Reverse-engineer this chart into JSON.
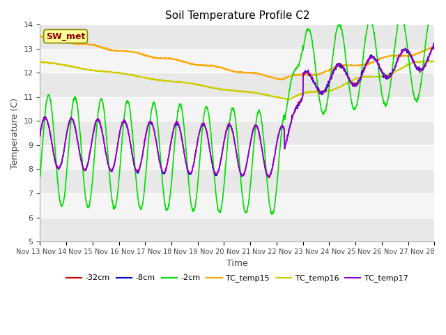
{
  "title": "Soil Temperature Profile C2",
  "xlabel": "Time",
  "ylabel": "Temperature (C)",
  "ylim": [
    5.0,
    14.0
  ],
  "yticks": [
    5.0,
    6.0,
    7.0,
    8.0,
    9.0,
    10.0,
    11.0,
    12.0,
    13.0,
    14.0
  ],
  "bg_color": "#ffffff",
  "plot_bg_color": "#ffffff",
  "band_colors": [
    "#e8e8e8",
    "#f5f5f5"
  ],
  "line_colors": {
    "TC_temp15": "#ffa500",
    "TC_temp16": "#cccc00",
    "TC_temp17": "#9900cc",
    "neg2cm": "#00dd00",
    "neg8cm": "#0000cc",
    "neg32cm": "#cc0000"
  },
  "sw_met_label": "SW_met",
  "sw_met_box_color": "#ffff99",
  "sw_met_text_color": "#880000",
  "legend_items": [
    "-32cm",
    "-8cm",
    "-2cm",
    "TC_temp15",
    "TC_temp16",
    "TC_temp17"
  ],
  "legend_colors": [
    "#cc0000",
    "#0000cc",
    "#00dd00",
    "#ffa500",
    "#cccc00",
    "#9900cc"
  ],
  "start_day": 13
}
